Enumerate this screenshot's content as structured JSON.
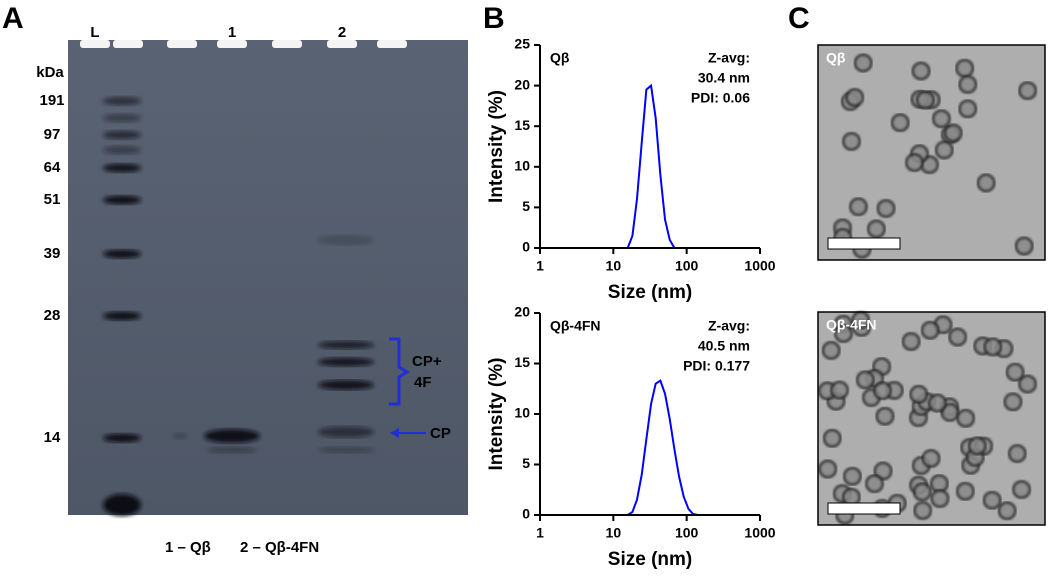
{
  "panel_labels": [
    "A",
    "B",
    "C"
  ],
  "gel": {
    "lane_labels": [
      "L",
      "1",
      "2"
    ],
    "unit": "kDa",
    "ladder": [
      "191",
      "97",
      "64",
      "51",
      "39",
      "28",
      "14"
    ],
    "annotations": [
      "CP+",
      "4F",
      "CP"
    ],
    "caption": [
      "1 – Qβ",
      "2 – Qβ-4FN"
    ]
  },
  "chart_data": [
    {
      "type": "line",
      "xlabel": "Size (nm)",
      "ylabel": "Intensity (%)",
      "xscale": "log",
      "color": "#0000ff",
      "annotations": [
        "Qβ",
        "Z-avg:",
        "30.4 nm",
        "PDI: 0.06"
      ],
      "x": [
        1,
        15.7,
        18.2,
        21.0,
        24.4,
        28.2,
        32.7,
        37.8,
        43.8,
        50.7,
        58.8,
        68.1,
        78.8,
        1000
      ],
      "values": [
        0,
        0,
        1.5,
        6,
        13,
        19.5,
        20,
        16,
        9,
        3.5,
        1,
        0,
        0,
        0
      ],
      "xlim": [
        1,
        1000
      ],
      "xticks": [
        1,
        10,
        100,
        1000
      ],
      "ylim": [
        0,
        25
      ],
      "yticks": [
        0,
        5,
        10,
        15,
        20,
        25
      ]
    },
    {
      "type": "line",
      "xlabel": "Size (nm)",
      "ylabel": "Intensity (%)",
      "xscale": "log",
      "color": "#0000ff",
      "annotations": [
        "Qβ-4FN",
        "Z-avg:",
        "40.5 nm",
        "PDI: 0.177"
      ],
      "x": [
        1,
        15.7,
        18.2,
        21.0,
        24.4,
        28.2,
        32.7,
        37.8,
        43.8,
        50.7,
        58.8,
        68.1,
        78.8,
        91.3,
        106,
        122,
        142,
        1000
      ],
      "values": [
        0,
        0,
        0.3,
        1.5,
        4,
        7.5,
        11,
        13,
        13.3,
        12,
        9.5,
        6.5,
        3.8,
        1.8,
        0.6,
        0.1,
        0,
        0
      ],
      "xlim": [
        1,
        1000
      ],
      "xticks": [
        1,
        10,
        100,
        1000
      ],
      "ylim": [
        0,
        20
      ],
      "yticks": [
        0,
        5,
        10,
        15,
        20
      ]
    }
  ],
  "tem": {
    "labels": [
      "Qβ",
      "Qβ-4FN"
    ]
  }
}
